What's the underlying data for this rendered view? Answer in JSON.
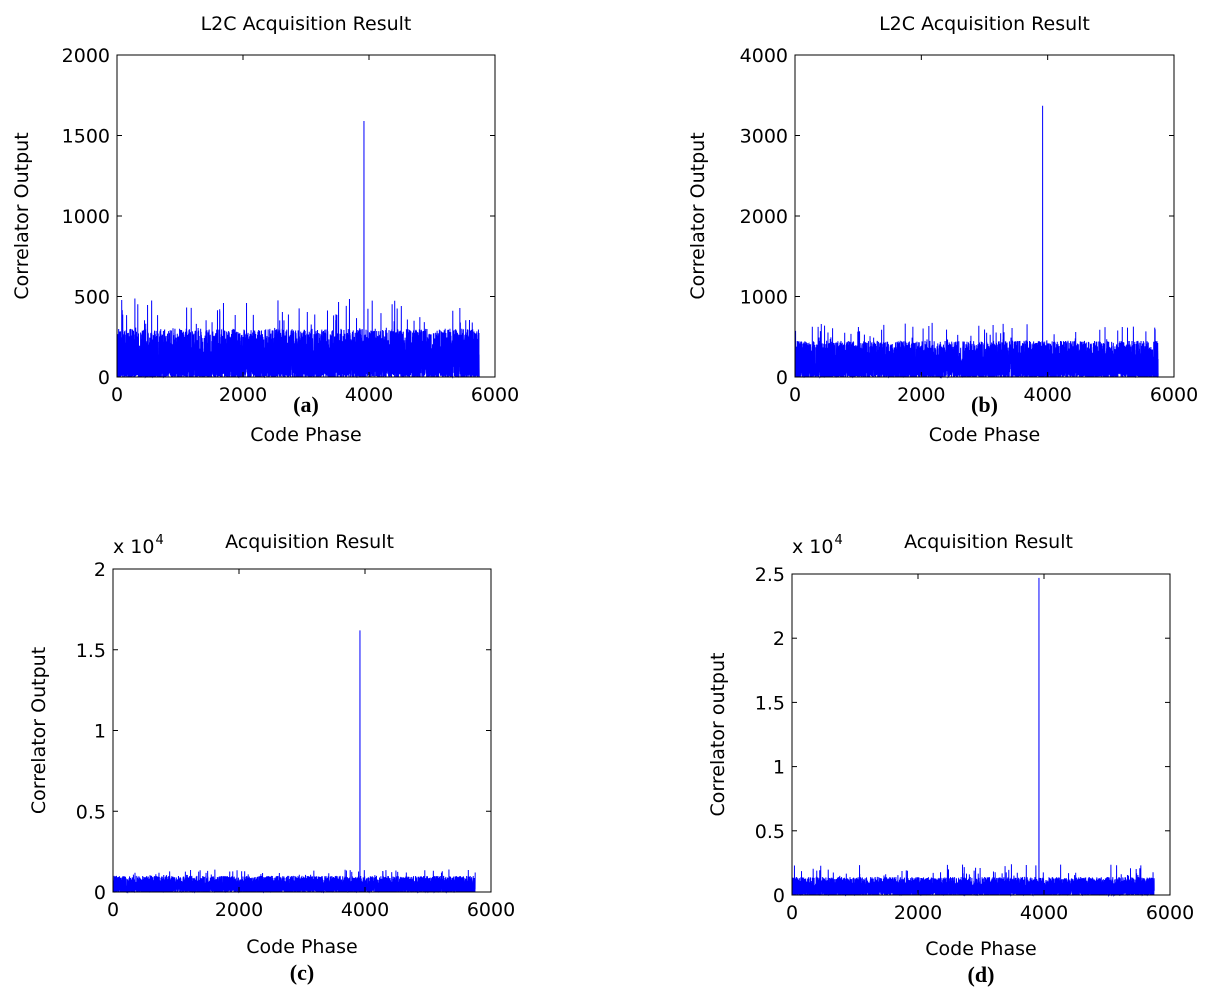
{
  "chart_data": [
    {
      "id": "a",
      "type": "line",
      "panel_label": "(a)",
      "title": "L2C Acquisition Result",
      "xlabel": "Code Phase",
      "ylabel": "Correlator Output",
      "xlim": [
        0,
        6000
      ],
      "ylim": [
        0,
        2000
      ],
      "xticks": [
        0,
        2000,
        4000,
        6000
      ],
      "yticks": [
        0,
        500,
        1000,
        1500,
        2000
      ],
      "ytick_labels": [
        "0",
        "500",
        "1000",
        "1500",
        "2000"
      ],
      "exponent_label": "",
      "exponent_power": "",
      "grid": false,
      "series": [
        {
          "color": "#0000ff",
          "n_points": 5750,
          "noise_max_typical": 300,
          "noise_max_rare": 490,
          "peak": {
            "x": 3920,
            "y": 1590
          }
        }
      ]
    },
    {
      "id": "b",
      "type": "line",
      "panel_label": "(b)",
      "title": "L2C Acquisition Result",
      "xlabel": "Code Phase",
      "ylabel": "Correlator Output",
      "xlim": [
        0,
        6000
      ],
      "ylim": [
        0,
        4000
      ],
      "xticks": [
        0,
        2000,
        4000,
        6000
      ],
      "yticks": [
        0,
        1000,
        2000,
        3000,
        4000
      ],
      "ytick_labels": [
        "0",
        "1000",
        "2000",
        "3000",
        "4000"
      ],
      "exponent_label": "",
      "exponent_power": "",
      "grid": false,
      "series": [
        {
          "color": "#0000ff",
          "n_points": 5750,
          "noise_max_typical": 450,
          "noise_max_rare": 680,
          "peak": {
            "x": 3920,
            "y": 3370
          }
        }
      ]
    },
    {
      "id": "c",
      "type": "line",
      "panel_label": "(c)",
      "title": "Acquisition Result",
      "xlabel": "Code Phase",
      "ylabel": "Correlator Output",
      "xlim": [
        0,
        6000
      ],
      "ylim": [
        0,
        2
      ],
      "xticks": [
        0,
        2000,
        4000,
        6000
      ],
      "yticks": [
        0,
        0.5,
        1,
        1.5,
        2
      ],
      "ytick_labels": [
        "0",
        "0.5",
        "1",
        "1.5",
        "2"
      ],
      "exponent_label": "x 10",
      "exponent_power": "4",
      "grid": false,
      "series": [
        {
          "color": "#0000ff",
          "n_points": 5750,
          "noise_max_typical": 0.1,
          "noise_max_rare": 0.14,
          "peak": {
            "x": 3920,
            "y": 1.62
          }
        }
      ]
    },
    {
      "id": "d",
      "type": "line",
      "panel_label": "(d)",
      "title": "Acquisition Result",
      "xlabel": "Code Phase",
      "ylabel": "Correlator output",
      "xlim": [
        0,
        6000
      ],
      "ylim": [
        0,
        2.5
      ],
      "xticks": [
        0,
        2000,
        4000,
        6000
      ],
      "yticks": [
        0,
        0.5,
        1,
        1.5,
        2,
        2.5
      ],
      "ytick_labels": [
        "0",
        "0.5",
        "1",
        "1.5",
        "2",
        "2.5"
      ],
      "exponent_label": "x 10",
      "exponent_power": "4",
      "grid": false,
      "series": [
        {
          "color": "#0000ff",
          "n_points": 5750,
          "noise_max_typical": 0.14,
          "noise_max_rare": 0.24,
          "peak": {
            "x": 3920,
            "y": 2.47
          }
        }
      ]
    }
  ]
}
